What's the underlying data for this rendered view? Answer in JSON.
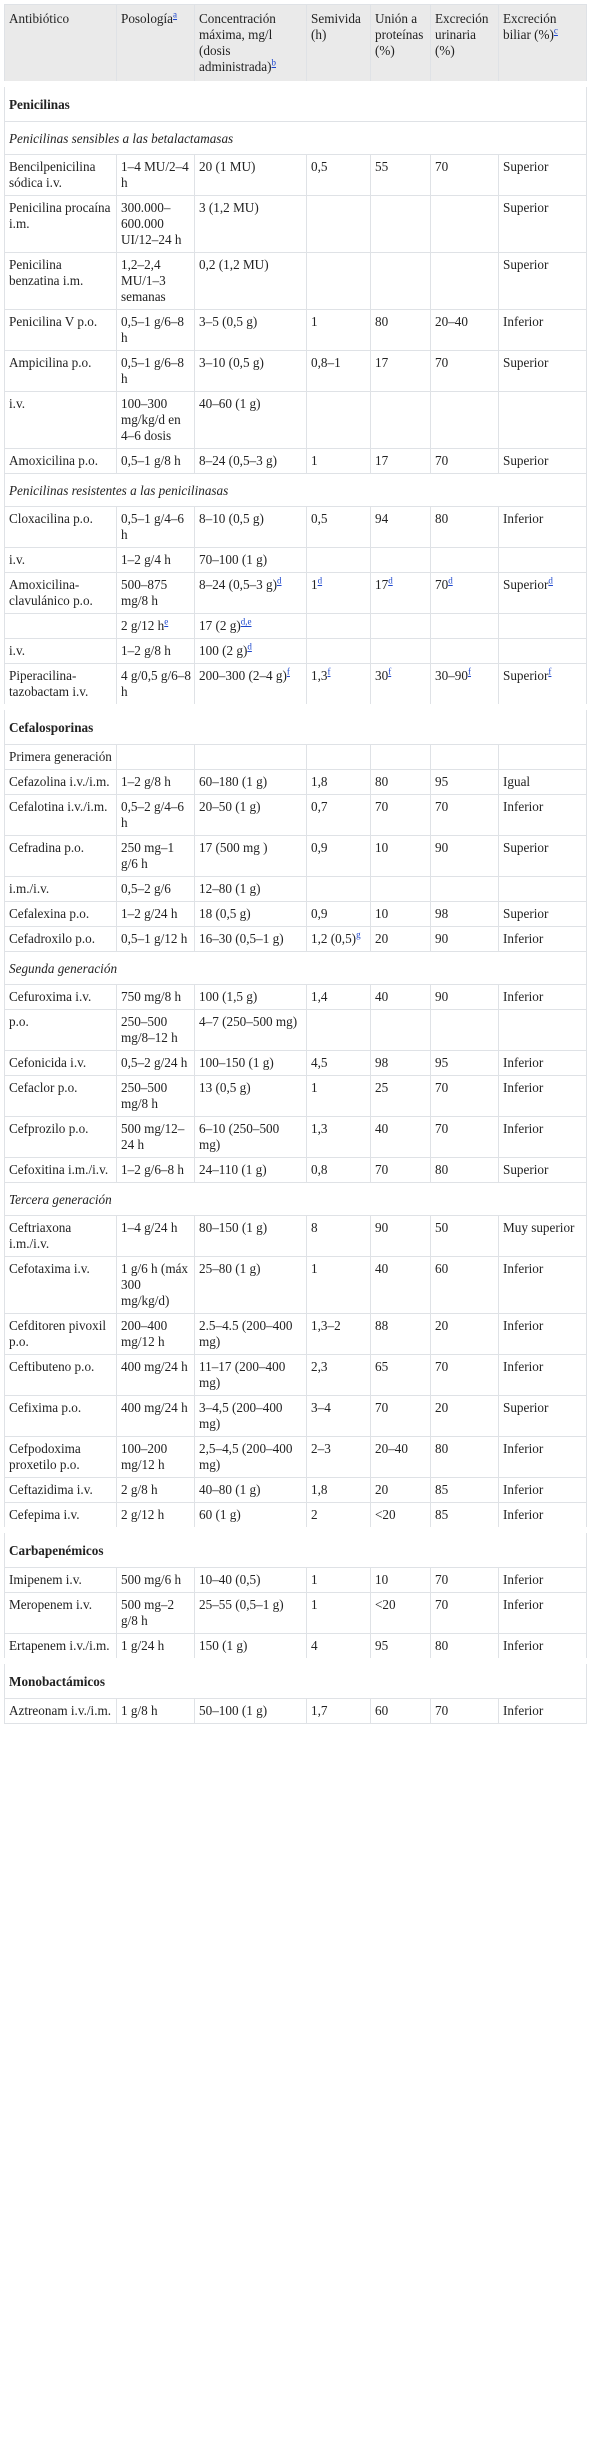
{
  "header": {
    "antibiotico": "Antibiótico",
    "posologia": "Posología",
    "posologia_ref": "a",
    "concentracion": "Concentración máxima, mg/l (dosis administrada)",
    "concentracion_ref": "b",
    "semivida": "Semivida (h)",
    "union": "Unión a proteínas (%)",
    "excrecion_urinaria": "Excreción urinaria (%)",
    "excrecion_biliar": "Excreción biliar (%)",
    "excrecion_biliar_ref": "c"
  },
  "rows": [
    {
      "type": "section",
      "text": "Penicilinas"
    },
    {
      "type": "sub",
      "text": "Penicilinas sensibles a las betalactamasas"
    },
    {
      "c": [
        "Bencilpenicilina sódica i.v.",
        "1–4 MU/2–4 h",
        "20 (1 MU)",
        "0,5",
        "55",
        "70",
        "Superior"
      ]
    },
    {
      "c": [
        "Penicilina procaína i.m.",
        "300.000–600.000 UI/12–24 h",
        "3 (1,2 MU)",
        "",
        "",
        "",
        "Superior"
      ]
    },
    {
      "c": [
        "Penicilina benzatina i.m.",
        "1,2–2,4 MU/1–3 semanas",
        "0,2 (1,2 MU)",
        "",
        "",
        "",
        "Superior"
      ]
    },
    {
      "c": [
        "Penicilina V p.o.",
        "0,5–1 g/6–8 h",
        "3–5 (0,5 g)",
        "1",
        "80",
        "20–40",
        "Inferior"
      ]
    },
    {
      "c": [
        "Ampicilina p.o.",
        "0,5–1 g/6–8 h",
        "3–10 (0,5 g)",
        "0,8–1",
        "17",
        "70",
        "Superior"
      ]
    },
    {
      "c": [
        "i.v.",
        "100–300 mg/kg/d en 4–6 dosis",
        "40–60 (1 g)",
        "",
        "",
        "",
        ""
      ]
    },
    {
      "c": [
        "Amoxicilina p.o.",
        "0,5–1 g/8 h",
        "8–24 (0,5–3 g)",
        "1",
        "17",
        "70",
        "Superior"
      ]
    },
    {
      "type": "sub",
      "text": "Penicilinas resistentes a las penicilinasas"
    },
    {
      "c": [
        "Cloxacilina p.o.",
        "0,5–1 g/4–6 h",
        "8–10 (0,5 g)",
        "0,5",
        "94",
        "80",
        "Inferior"
      ]
    },
    {
      "c": [
        "i.v.",
        "1–2 g/4 h",
        "70–100 (1 g)",
        "",
        "",
        "",
        ""
      ]
    },
    {
      "c": [
        "Amoxicilina-clavulánico p.o.",
        "500–875 mg/8 h",
        "8–24 (0,5–3 g)",
        "1",
        "17",
        "70",
        "Superior"
      ],
      "s": [
        "",
        "",
        "d",
        "d",
        "d",
        "d",
        "d"
      ]
    },
    {
      "c": [
        "",
        "2 g/12 h",
        "17 (2 g)",
        "",
        "",
        "",
        ""
      ],
      "s": [
        "",
        "e",
        "d,e",
        "",
        "",
        "",
        ""
      ]
    },
    {
      "c": [
        "i.v.",
        "1–2 g/8 h",
        "100 (2 g)",
        "",
        "",
        "",
        ""
      ],
      "s": [
        "",
        "",
        "d",
        "",
        "",
        "",
        ""
      ]
    },
    {
      "c": [
        "Piperacilina-tazobactam i.v.",
        "4 g/0,5 g/6–8 h",
        "200–300 (2–4 g)",
        "1,3",
        "30",
        "30–90",
        "Superior"
      ],
      "s": [
        "",
        "",
        "f",
        "f",
        "f",
        "f",
        "f"
      ]
    },
    {
      "type": "section",
      "text": "Cefalosporinas"
    },
    {
      "c": [
        "Primera generación",
        "",
        "",
        "",
        "",
        "",
        ""
      ]
    },
    {
      "c": [
        "Cefazolina i.v./i.m.",
        "1–2 g/8 h",
        "60–180 (1 g)",
        "1,8",
        "80",
        "95",
        "Igual"
      ]
    },
    {
      "c": [
        "Cefalotina i.v./i.m.",
        "0,5–2 g/4–6 h",
        "20–50 (1 g)",
        "0,7",
        "70",
        "70",
        "Inferior"
      ]
    },
    {
      "c": [
        "Cefradina p.o.",
        "250 mg–1 g/6 h",
        "17 (500 mg )",
        "0,9",
        "10",
        "90",
        "Superior"
      ]
    },
    {
      "c": [
        "i.m./i.v.",
        "0,5–2 g/6",
        "12–80 (1 g)",
        "",
        "",
        "",
        ""
      ]
    },
    {
      "c": [
        "Cefalexina p.o.",
        "1–2 g/24 h",
        "18 (0,5 g)",
        "0,9",
        "10",
        "98",
        "Superior"
      ]
    },
    {
      "c": [
        "Cefadroxilo p.o.",
        "0,5–1 g/12 h",
        "16–30 (0,5–1 g)",
        "1,2 (0,5)",
        "20",
        "90",
        "Inferior"
      ],
      "s": [
        "",
        "",
        "",
        "g",
        "",
        "",
        ""
      ]
    },
    {
      "type": "sub",
      "text": "Segunda generación"
    },
    {
      "c": [
        "Cefuroxima i.v.",
        "750 mg/8 h",
        "100 (1,5 g)",
        "1,4",
        "40",
        "90",
        "Inferior"
      ]
    },
    {
      "c": [
        "p.o.",
        "250–500 mg/8–12 h",
        "4–7 (250–500 mg)",
        "",
        "",
        "",
        ""
      ]
    },
    {
      "c": [
        "Cefonicida i.v.",
        "0,5–2 g/24 h",
        "100–150 (1 g)",
        "4,5",
        "98",
        "95",
        "Inferior"
      ]
    },
    {
      "c": [
        "Cefaclor p.o.",
        "250–500 mg/8 h",
        "13 (0,5 g)",
        "1",
        "25",
        "70",
        "Inferior"
      ]
    },
    {
      "c": [
        "Cefprozilo p.o.",
        "500 mg/12–24 h",
        "6–10 (250–500 mg)",
        "1,3",
        "40",
        "70",
        "Inferior"
      ]
    },
    {
      "c": [
        "Cefoxitina i.m./i.v.",
        "1–2 g/6–8 h",
        "24–110 (1 g)",
        "0,8",
        "70",
        "80",
        "Superior"
      ]
    },
    {
      "type": "sub",
      "text": "Tercera generación"
    },
    {
      "c": [
        "Ceftriaxona i.m./i.v.",
        "1–4 g/24 h",
        "80–150 (1 g)",
        "8",
        "90",
        "50",
        "Muy superior"
      ]
    },
    {
      "c": [
        "Cefotaxima i.v.",
        "1 g/6 h (máx 300 mg/kg/d)",
        "25–80 (1 g)",
        "1",
        "40",
        "60",
        "Inferior"
      ]
    },
    {
      "c": [
        "Cefditoren pivoxil p.o.",
        "200–400 mg/12 h",
        "2.5–4.5 (200–400 mg)",
        "1,3–2",
        "88",
        "20",
        "Inferior"
      ]
    },
    {
      "c": [
        "Ceftibuteno p.o.",
        "400 mg/24 h",
        "11–17 (200–400 mg)",
        "2,3",
        "65",
        "70",
        "Inferior"
      ]
    },
    {
      "c": [
        "Cefixima p.o.",
        "400 mg/24 h",
        "3–4,5 (200–400 mg)",
        "3–4",
        "70",
        "20",
        "Superior"
      ]
    },
    {
      "c": [
        "Cefpodoxima proxetilo p.o.",
        "100–200 mg/12 h",
        "2,5–4,5 (200–400 mg)",
        "2–3",
        "20–40",
        "80",
        "Inferior"
      ]
    },
    {
      "c": [
        "Ceftazidima i.v.",
        "2 g/8 h",
        "40–80 (1 g)",
        "1,8",
        "20",
        "85",
        "Inferior"
      ]
    },
    {
      "c": [
        "Cefepima i.v.",
        "2 g/12 h",
        "60 (1 g)",
        "2",
        "<20",
        "85",
        "Inferior"
      ]
    },
    {
      "type": "section",
      "text": "Carbapenémicos"
    },
    {
      "c": [
        "Imipenem i.v.",
        "500 mg/6 h",
        "10–40 (0,5)",
        "1",
        "10",
        "70",
        "Inferior"
      ]
    },
    {
      "c": [
        "Meropenem i.v.",
        "500 mg–2 g/8 h",
        "25–55 (0,5–1 g)",
        "1",
        "<20",
        "70",
        "Inferior"
      ]
    },
    {
      "c": [
        "Ertapenem i.v./i.m.",
        "1 g/24 h",
        "150 (1 g)",
        "4",
        "95",
        "80",
        "Inferior"
      ]
    },
    {
      "type": "section",
      "text": "Monobactámicos"
    },
    {
      "c": [
        "Aztreonam i.v./i.m.",
        "1 g/8 h",
        "50–100 (1 g)",
        "1,7",
        "60",
        "70",
        "Inferior"
      ]
    }
  ]
}
